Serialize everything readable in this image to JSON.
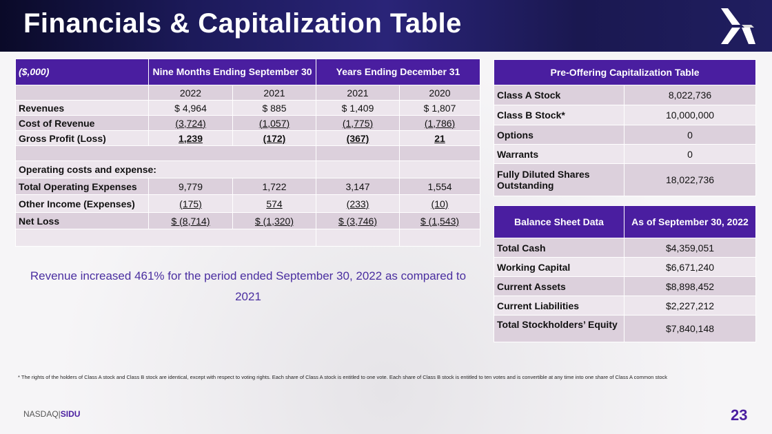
{
  "header": {
    "title": "Financials & Capitalization Table"
  },
  "financials": {
    "unit": "($,000)",
    "group1": "Nine Months Ending September 30",
    "group2": "Years Ending December 31",
    "years": [
      "2022",
      "2021",
      "2021",
      "2020"
    ],
    "rows": [
      {
        "label": "Revenues",
        "values": [
          "$ 4,964",
          "$ 885",
          "$ 1,409",
          "$ 1,807"
        ]
      },
      {
        "label": "Cost of Revenue",
        "values": [
          "(3,724)",
          "(1,057)",
          "(1,775)",
          "(1,786)"
        ]
      },
      {
        "label": "Gross Profit (Loss)",
        "values": [
          "1,239",
          "(172)",
          "(367)",
          "21"
        ]
      },
      {
        "label": "",
        "values": [
          "",
          "",
          "",
          ""
        ]
      },
      {
        "label": "Operating costs and expense:",
        "values": [
          "",
          "",
          "",
          ""
        ]
      },
      {
        "label": "Total Operating Expenses",
        "values": [
          "9,779",
          "1,722",
          "3,147",
          "1,554"
        ]
      },
      {
        "label": "Other Income (Expenses)",
        "values": [
          "(175)",
          "574",
          "(233)",
          "(10)"
        ]
      },
      {
        "label": "Net Loss",
        "values": [
          "$ (8,714)",
          "$ (1,320)",
          "$ (3,746)",
          "$ (1,543)"
        ]
      },
      {
        "label": "",
        "values": [
          "",
          "",
          "",
          ""
        ]
      }
    ]
  },
  "capitalization": {
    "title": "Pre-Offering Capitalization Table",
    "rows": [
      {
        "label": "Class A Stock",
        "value": "8,022,736"
      },
      {
        "label": "Class B Stock*",
        "value": "10,000,000"
      },
      {
        "label": "Options",
        "value": "0"
      },
      {
        "label": "Warrants",
        "value": "0"
      },
      {
        "label": "Fully Diluted Shares Outstanding",
        "value": "18,022,736"
      }
    ]
  },
  "balance": {
    "title": "Balance Sheet Data",
    "col": "As of  September 30, 2022",
    "rows": [
      {
        "label": "Total Cash",
        "value": "$4,359,051"
      },
      {
        "label": "Working Capital",
        "value": "$6,671,240"
      },
      {
        "label": "Current Assets",
        "value": "$8,898,452"
      },
      {
        "label": "Current Liabilities",
        "value": "$2,227,212"
      },
      {
        "label": "Total Stockholders’ Equity",
        "value": "$7,840,148"
      }
    ]
  },
  "callout": "Revenue increased 461% for the period ended September 30, 2022 as compared to 2021",
  "footnote": "* The rights of the holders of Class A stock and Class B stock are identical, except with respect to voting rights. Each share of Class A stock is entitled to one vote. Each share of Class B stock is entitled to ten votes and is convertible at any  time into one share of Class A common stock",
  "footer": {
    "exchange": "NASDAQ|",
    "ticker": "SIDU",
    "page": "23"
  }
}
